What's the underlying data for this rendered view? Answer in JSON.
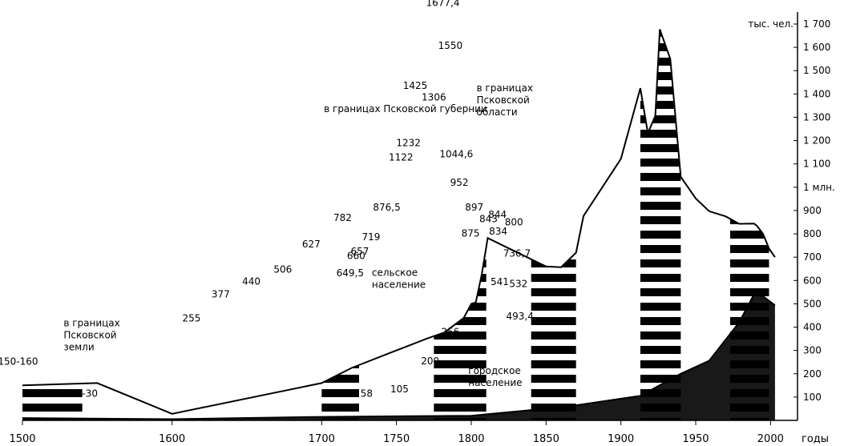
{
  "chart_data": {
    "type": "area",
    "title": "",
    "xlabel": "годы",
    "ylabel": "тыс. чел.",
    "xlim": [
      1500,
      2010
    ],
    "ylim": [
      0,
      1700
    ],
    "x_ticks": [
      {
        "v": 1500,
        "label": "1500"
      },
      {
        "v": 1600,
        "label": "1600"
      },
      {
        "v": 1700,
        "label": "1700"
      },
      {
        "v": 1750,
        "label": "1750"
      },
      {
        "v": 1800,
        "label": "1800"
      },
      {
        "v": 1850,
        "label": "1850"
      },
      {
        "v": 1900,
        "label": "1900"
      },
      {
        "v": 1950,
        "label": "1950"
      },
      {
        "v": 2000,
        "label": "2000"
      }
    ],
    "y_ticks": [
      {
        "v": 100,
        "label": "100"
      },
      {
        "v": 200,
        "label": "200"
      },
      {
        "v": 300,
        "label": "300"
      },
      {
        "v": 400,
        "label": "400"
      },
      {
        "v": 500,
        "label": "500"
      },
      {
        "v": 600,
        "label": "600"
      },
      {
        "v": 700,
        "label": "700"
      },
      {
        "v": 800,
        "label": "800"
      },
      {
        "v": 900,
        "label": "900"
      },
      {
        "v": 1000,
        "label": "1 млн."
      },
      {
        "v": 1100,
        "label": "1 100"
      },
      {
        "v": 1200,
        "label": "1 200"
      },
      {
        "v": 1300,
        "label": "1 300"
      },
      {
        "v": 1400,
        "label": "1 400"
      },
      {
        "v": 1500,
        "label": "1 500"
      },
      {
        "v": 1600,
        "label": "1 600"
      },
      {
        "v": 1700,
        "label": "1 700"
      }
    ],
    "series": [
      {
        "name": "",
        "x": [
          1500,
          1550,
          1600,
          1700,
          1720,
          1750,
          1770,
          1782,
          1795,
          1800,
          1803,
          1807,
          1811,
          1850,
          1860,
          1870,
          1875,
          1900,
          1913,
          1918,
          1923,
          1926,
          1933,
          1940,
          1950,
          1959,
          1970,
          1979,
          1989,
          1991,
          1995,
          1999,
          2003
        ],
        "y": [
          150,
          160,
          28,
          160,
          225,
          300,
          350,
          377,
          440,
          500,
          506,
          627,
          782,
          660,
          657,
          719,
          876.5,
          1122,
          1425,
          1232,
          1306,
          1677.4,
          1550,
          1044.6,
          952,
          897,
          875,
          843,
          844,
          834,
          800,
          736.7,
          700
        ]
      },
      {
        "name": "",
        "x": [
          1500,
          1600,
          1700,
          1800,
          1863,
          1913,
          1940,
          1959,
          1979,
          1989,
          1995,
          2003
        ],
        "y": [
          10,
          5,
          15,
          20,
          58,
          105,
          200,
          256,
          420,
          541,
          532,
          493.4
        ]
      }
    ],
    "data_labels": [
      {
        "text": "150-160",
        "x": 1509,
        "y": 238
      },
      {
        "text": "25-30",
        "x": 1597,
        "y": 101
      },
      {
        "text": "255",
        "x": 1741,
        "y": 425
      },
      {
        "text": "377",
        "x": 1780,
        "y": 527
      },
      {
        "text": "440",
        "x": 1821,
        "y": 582
      },
      {
        "text": "506",
        "x": 1863,
        "y": 634
      },
      {
        "text": "627",
        "x": 1901,
        "y": 741
      },
      {
        "text": "782",
        "x": 1943,
        "y": 856
      },
      {
        "text": "649,5",
        "x": 1953,
        "y": 618
      },
      {
        "text": "660",
        "x": 1961,
        "y": 692
      },
      {
        "text": "657",
        "x": 1966,
        "y": 711
      },
      {
        "text": "719",
        "x": 1981,
        "y": 772
      },
      {
        "text": "876,5",
        "x": 2002,
        "y": 899
      },
      {
        "text": "1122",
        "x": 2021,
        "y": 1115
      },
      {
        "text": "1425",
        "x": 2040,
        "y": 1422
      },
      {
        "text": "1306",
        "x": 2065,
        "y": 1372
      },
      {
        "text": "1232",
        "x": 2031,
        "y": 1176
      },
      {
        "text": "1677,4",
        "x": 2077,
        "y": 1777
      },
      {
        "text": "1550",
        "x": 2087,
        "y": 1594
      },
      {
        "text": "1044,6",
        "x": 2095,
        "y": 1128
      },
      {
        "text": "952",
        "x": 2099,
        "y": 1006
      },
      {
        "text": "897",
        "x": 2119,
        "y": 900
      },
      {
        "text": "843",
        "x": 2138,
        "y": 850
      },
      {
        "text": "844",
        "x": 2150,
        "y": 869
      },
      {
        "text": "875",
        "x": 2114,
        "y": 789
      },
      {
        "text": "834",
        "x": 2151,
        "y": 796
      },
      {
        "text": "800",
        "x": 2172,
        "y": 837
      },
      {
        "text": "736,7",
        "x": 2176,
        "y": 703
      },
      {
        "text": "541",
        "x": 2153,
        "y": 580
      },
      {
        "text": "532",
        "x": 2178,
        "y": 571
      },
      {
        "text": "493,4",
        "x": 2180,
        "y": 433
      },
      {
        "text": "58",
        "x": 1975,
        "y": 101
      },
      {
        "text": "105",
        "x": 2019,
        "y": 121
      },
      {
        "text": "200",
        "x": 2060,
        "y": 240
      },
      {
        "text": "256",
        "x": 2087,
        "y": 365
      }
    ],
    "annotations": [
      {
        "lines": [
          "в границах",
          "Псковской",
          "земли"
        ],
        "x": 1570,
        "y": 403
      },
      {
        "lines": [
          "в границах Псковской губернии"
        ],
        "x": 1918,
        "y": 1323
      },
      {
        "lines": [
          "в границах",
          "Псковской",
          "области"
        ],
        "x": 2122,
        "y": 1412
      },
      {
        "lines": [
          "сельское",
          "население"
        ],
        "x": 1982,
        "y": 620
      },
      {
        "lines": [
          "городское",
          "население"
        ],
        "x": 2111,
        "y": 200
      }
    ]
  }
}
